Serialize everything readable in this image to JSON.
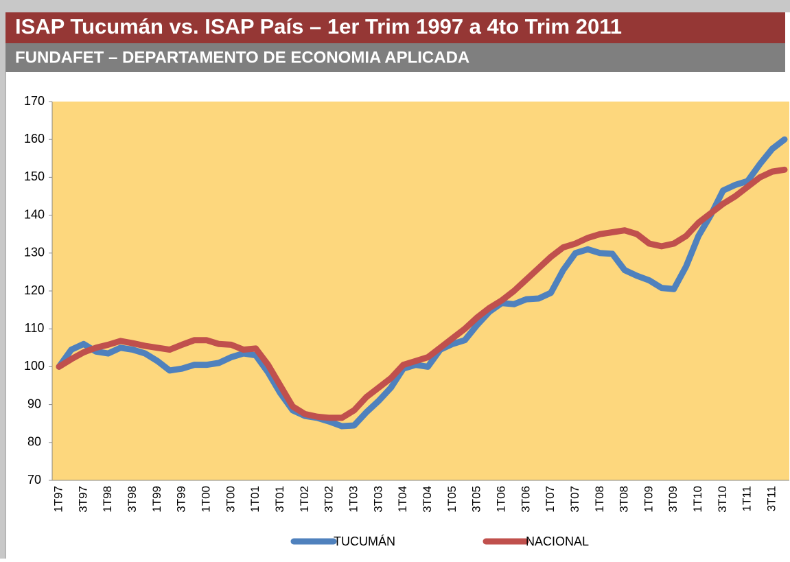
{
  "chart_data": {
    "type": "line",
    "title": "ISAP Tucumán vs. ISAP País – 1er Trim 1997 a 4to Trim 2011",
    "subtitle": "FUNDAFET – DEPARTAMENTO DE ECONOMIA APLICADA",
    "categories": [
      "1T97",
      null,
      "3T97",
      null,
      "1T98",
      null,
      "3T98",
      null,
      "1T99",
      null,
      "3T99",
      null,
      "1T00",
      null,
      "3T00",
      null,
      "1T01",
      null,
      "3T01",
      null,
      "1T02",
      null,
      "3T02",
      null,
      "1T03",
      null,
      "3T03",
      null,
      "1T04",
      null,
      "3T04",
      null,
      "1T05",
      null,
      "3T05",
      null,
      "1T06",
      null,
      "3T06",
      null,
      "1T07",
      null,
      "3T07",
      null,
      "1T08",
      null,
      "3T08",
      null,
      "1T09",
      null,
      "3T09",
      null,
      "1T10",
      null,
      "3T10",
      null,
      "1T11",
      null,
      "3T11",
      null
    ],
    "series": [
      {
        "name": "TUCUMÁN",
        "color": "#4f81bd",
        "values": [
          100,
          104.5,
          106,
          104,
          103.5,
          105,
          104.5,
          103.5,
          101.5,
          99,
          99.5,
          100.5,
          100.5,
          101,
          102.5,
          103.5,
          103,
          98.5,
          93,
          88.5,
          87,
          86.5,
          85.5,
          84.3,
          84.5,
          88,
          91,
          94.5,
          99.5,
          100.5,
          100,
          104.5,
          106,
          107,
          111,
          114.5,
          116.8,
          116.5,
          117.8,
          118,
          119.5,
          125.5,
          130,
          131,
          130,
          129.8,
          125.5,
          124,
          122.8,
          120.8,
          120.5,
          126.5,
          134.5,
          140,
          146.5,
          148,
          149,
          153.5,
          157.5,
          160
        ]
      },
      {
        "name": "NACIONAL",
        "color": "#c0504d",
        "values": [
          100,
          102,
          103.8,
          105,
          105.8,
          106.8,
          106.2,
          105.5,
          105,
          104.5,
          105.8,
          107,
          107,
          106,
          105.8,
          104.5,
          104.8,
          100.5,
          95,
          89.5,
          87.5,
          86.8,
          86.5,
          86.5,
          88.5,
          92,
          94.5,
          97,
          100.5,
          101.5,
          102.5,
          105,
          107.5,
          110,
          113,
          115.5,
          117.5,
          120,
          123,
          126,
          129,
          131.5,
          132.5,
          134,
          135,
          135.5,
          136,
          135,
          132.5,
          131.8,
          132.5,
          134.5,
          138,
          140.5,
          143,
          145,
          147.5,
          150,
          151.5,
          152
        ]
      }
    ],
    "ylim": [
      70,
      170
    ],
    "yticks": [
      70,
      80,
      90,
      100,
      110,
      120,
      130,
      140,
      150,
      160,
      170
    ],
    "grid": false,
    "legend": "bottom",
    "plot_background": "#fdd77d"
  }
}
